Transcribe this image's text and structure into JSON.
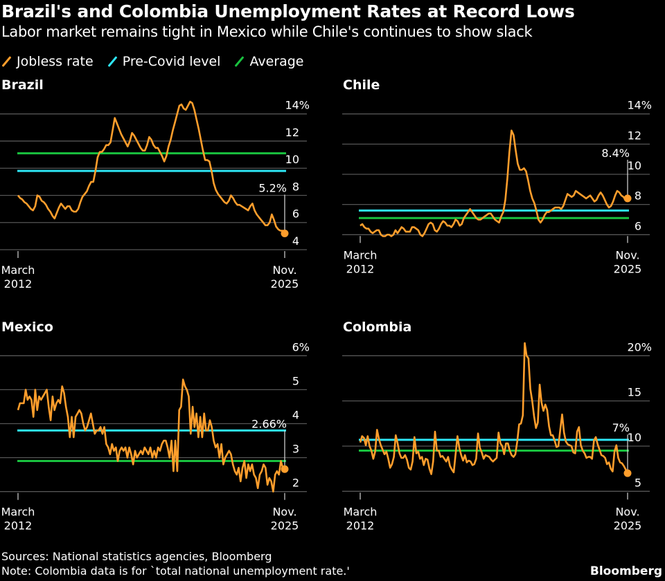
{
  "title": "Brazil's and Colombia Unemployment Rates at Record Lows",
  "subtitle": "Labor market remains tight in Mexico while Chile's continues to show slack",
  "legend": [
    {
      "label": "Jobless rate",
      "color": "#ff9e2c"
    },
    {
      "label": "Pre-Covid level",
      "color": "#2ee6f5"
    },
    {
      "label": "Average",
      "color": "#19c23f"
    }
  ],
  "footer": {
    "sources": "Sources: National statistics agencies, Bloomberg",
    "note": "Note: Colombia data is for `total national unemployment rate.'",
    "brand": "Bloomberg"
  },
  "chart_data": [
    {
      "type": "line",
      "title": "Brazil",
      "x_start": "March 2012",
      "x_end": "Nov. 2025",
      "x_tick_labels": [
        [
          "March",
          "2012"
        ],
        [
          "Nov.",
          "2025"
        ]
      ],
      "y_ticks": [
        4,
        6,
        8,
        10,
        12,
        14
      ],
      "y_tick_labels": [
        "4",
        "6",
        "8",
        "10",
        "12",
        "14%"
      ],
      "ylim": [
        4,
        14
      ],
      "grid": true,
      "pre_covid_level": 9.8,
      "average": 11.1,
      "last_value_label": "5.2%",
      "last_value": 5.2,
      "series": [
        {
          "name": "Jobless rate",
          "values": [
            8.0,
            7.8,
            7.7,
            7.5,
            7.4,
            7.2,
            7.0,
            6.9,
            7.2,
            8.0,
            7.9,
            7.6,
            7.5,
            7.3,
            7.0,
            6.8,
            6.5,
            6.3,
            6.7,
            7.1,
            7.4,
            7.2,
            7.0,
            7.2,
            7.2,
            6.9,
            6.8,
            6.8,
            7.0,
            7.5,
            7.9,
            8.1,
            8.3,
            8.7,
            9.0,
            9.0,
            9.8,
            10.8,
            11.2,
            11.2,
            11.4,
            11.7,
            11.7,
            11.9,
            12.8,
            13.7,
            13.3,
            12.9,
            12.5,
            12.2,
            11.9,
            11.6,
            12.0,
            12.6,
            12.4,
            12.1,
            11.8,
            11.5,
            11.3,
            11.3,
            11.7,
            12.3,
            12.1,
            11.7,
            11.5,
            11.5,
            11.2,
            10.9,
            10.5,
            10.9,
            11.6,
            12.1,
            12.8,
            13.4,
            14.0,
            14.6,
            14.7,
            14.4,
            14.3,
            14.6,
            14.9,
            14.8,
            14.3,
            13.6,
            12.9,
            12.1,
            11.3,
            10.6,
            10.6,
            10.5,
            9.8,
            8.9,
            8.4,
            8.1,
            7.9,
            7.7,
            7.5,
            7.4,
            7.6,
            8.0,
            7.8,
            7.5,
            7.3,
            7.3,
            7.2,
            7.1,
            7.0,
            6.9,
            7.2,
            7.4,
            6.9,
            6.6,
            6.4,
            6.2,
            6.0,
            5.8,
            5.8,
            6.0,
            6.6,
            6.2,
            5.7,
            5.5,
            5.4,
            5.4,
            5.2
          ]
        }
      ]
    },
    {
      "type": "line",
      "title": "Chile",
      "x_start": "March 2012",
      "x_end": "Nov. 2025",
      "x_tick_labels": [
        [
          "March",
          "2012"
        ],
        [
          "Nov.",
          "2025"
        ]
      ],
      "y_ticks": [
        6,
        8,
        10,
        12,
        14
      ],
      "y_tick_labels": [
        "6",
        "8",
        "10",
        "12",
        "14%"
      ],
      "ylim": [
        5.5,
        14
      ],
      "grid": true,
      "pre_covid_level": 7.6,
      "average": 7.1,
      "last_value_label": "8.4%",
      "last_value": 8.4,
      "series": [
        {
          "name": "Jobless rate",
          "values": [
            6.6,
            6.7,
            6.5,
            6.4,
            6.4,
            6.2,
            6.1,
            6.2,
            6.3,
            6.3,
            6.0,
            5.9,
            5.9,
            6.0,
            6.0,
            5.9,
            6.0,
            6.3,
            6.1,
            6.3,
            6.5,
            6.4,
            6.2,
            6.2,
            6.2,
            6.5,
            6.5,
            6.4,
            6.3,
            6.0,
            5.9,
            6.1,
            6.4,
            6.7,
            6.8,
            6.7,
            6.3,
            6.2,
            6.4,
            6.7,
            6.9,
            6.8,
            6.6,
            6.6,
            6.5,
            6.7,
            7.0,
            6.9,
            6.6,
            6.7,
            7.1,
            7.3,
            7.5,
            7.7,
            7.5,
            7.3,
            7.1,
            7.0,
            7.0,
            7.1,
            7.2,
            7.3,
            7.4,
            7.4,
            7.2,
            7.0,
            6.9,
            6.8,
            7.2,
            7.5,
            8.3,
            9.7,
            11.5,
            12.9,
            12.6,
            11.6,
            10.7,
            10.3,
            10.3,
            10.4,
            10.2,
            9.6,
            8.9,
            8.4,
            8.1,
            7.6,
            7.0,
            6.8,
            7.0,
            7.3,
            7.5,
            7.5,
            7.6,
            7.7,
            7.8,
            7.8,
            7.8,
            7.7,
            7.9,
            8.3,
            8.7,
            8.6,
            8.5,
            8.6,
            8.9,
            8.8,
            8.7,
            8.6,
            8.5,
            8.4,
            8.5,
            8.6,
            8.4,
            8.2,
            8.3,
            8.6,
            8.8,
            8.6,
            8.3,
            8.0,
            7.8,
            7.9,
            8.2,
            8.6,
            8.9,
            8.8,
            8.6,
            8.5,
            8.3,
            8.4
          ]
        }
      ]
    },
    {
      "type": "line",
      "title": "Mexico",
      "x_start": "March 2012",
      "x_end": "Nov. 2025",
      "x_tick_labels": [
        [
          "March",
          "2012"
        ],
        [
          "Nov.",
          "2025"
        ]
      ],
      "y_ticks": [
        2,
        3,
        4,
        5,
        6
      ],
      "y_tick_labels": [
        "2",
        "3",
        "4",
        "5",
        "6%"
      ],
      "ylim": [
        1.7,
        6
      ],
      "grid": true,
      "pre_covid_level": 3.8,
      "average": 2.9,
      "last_value_label": "2.66%",
      "last_value": 2.66,
      "series": [
        {
          "name": "Jobless rate",
          "values": [
            4.4,
            4.6,
            4.6,
            4.6,
            5.0,
            4.7,
            4.8,
            4.7,
            4.2,
            5.0,
            4.4,
            4.8,
            4.7,
            4.8,
            4.9,
            5.0,
            4.5,
            4.1,
            4.8,
            4.4,
            4.6,
            4.7,
            4.6,
            5.1,
            4.9,
            4.5,
            4.2,
            3.6,
            4.2,
            3.6,
            4.2,
            4.3,
            4.4,
            4.3,
            4.0,
            3.8,
            3.9,
            4.1,
            4.3,
            4.0,
            3.7,
            3.8,
            3.8,
            3.9,
            3.7,
            3.9,
            3.4,
            3.3,
            3.1,
            3.4,
            3.2,
            3.3,
            2.9,
            3.2,
            3.3,
            3.2,
            3.3,
            3.0,
            3.3,
            3.1,
            2.8,
            3.2,
            3.0,
            3.1,
            3.2,
            3.1,
            3.3,
            3.2,
            3.1,
            3.3,
            3.0,
            3.2,
            3.0,
            3.3,
            3.2,
            3.4,
            3.5,
            3.5,
            3.3,
            3.0,
            3.5,
            2.6,
            3.5,
            2.6,
            4.4,
            4.5,
            5.3,
            5.1,
            5.0,
            4.8,
            3.7,
            4.5,
            3.9,
            4.3,
            3.6,
            4.2,
            3.6,
            4.3,
            3.8,
            3.8,
            4.1,
            3.9,
            3.5,
            3.3,
            3.4,
            3.0,
            3.4,
            2.8,
            3.0,
            3.1,
            3.2,
            3.1,
            2.8,
            2.6,
            2.5,
            2.7,
            2.3,
            2.7,
            2.9,
            2.4,
            2.8,
            2.6,
            2.8,
            2.5,
            2.4,
            2.1,
            2.5,
            2.6,
            2.8,
            2.7,
            2.2,
            2.4,
            2.3,
            2.0,
            2.5,
            2.6,
            2.5,
            2.9,
            2.7,
            2.66
          ]
        }
      ]
    },
    {
      "type": "line",
      "title": "Colombia",
      "x_start": "March 2012",
      "x_end": "Nov. 2025",
      "x_tick_labels": [
        [
          "March",
          "2012"
        ],
        [
          "Nov.",
          "2025"
        ]
      ],
      "y_ticks": [
        5,
        10,
        15,
        20
      ],
      "y_tick_labels": [
        "5",
        "10",
        "15",
        "20%"
      ],
      "ylim": [
        5,
        22
      ],
      "grid": true,
      "pre_covid_level": 10.7,
      "average": 9.5,
      "last_value_label": "7%",
      "last_value": 7.0,
      "series": [
        {
          "name": "Jobless rate",
          "values": [
            10.4,
            11.1,
            10.9,
            10.1,
            11.1,
            10.0,
            9.5,
            8.6,
            9.4,
            11.8,
            10.8,
            10.1,
            9.6,
            9.1,
            9.4,
            8.6,
            7.6,
            8.0,
            8.8,
            11.2,
            10.3,
            9.2,
            8.7,
            8.7,
            9.0,
            8.5,
            7.6,
            7.4,
            8.3,
            11.0,
            9.2,
            9.4,
            8.6,
            8.8,
            7.9,
            8.6,
            8.5,
            7.5,
            6.9,
            8.3,
            11.6,
            9.5,
            9.5,
            8.8,
            8.9,
            8.6,
            8.3,
            8.8,
            7.8,
            7.4,
            7.1,
            9.1,
            11.1,
            9.8,
            9.0,
            8.4,
            9.0,
            8.2,
            8.4,
            8.3,
            7.9,
            8.0,
            8.6,
            11.4,
            9.8,
            9.3,
            8.6,
            9.0,
            8.9,
            8.8,
            8.5,
            8.3,
            8.5,
            8.7,
            11.5,
            10.3,
            10.0,
            9.1,
            10.3,
            10.3,
            9.5,
            9.0,
            8.8,
            9.1,
            10.5,
            12.4,
            12.5,
            13.4,
            21.4,
            20.0,
            19.7,
            16.3,
            15.0,
            13.3,
            12.0,
            12.6,
            16.8,
            14.8,
            13.9,
            14.6,
            14.0,
            12.2,
            11.2,
            11.2,
            10.6,
            9.9,
            10.0,
            11.8,
            13.5,
            11.5,
            10.5,
            10.2,
            10.1,
            10.0,
            9.3,
            9.2,
            11.6,
            12.1,
            10.1,
            9.5,
            9.2,
            8.7,
            8.8,
            8.8,
            8.6,
            10.6,
            11.0,
            10.2,
            9.6,
            9.0,
            8.9,
            8.7,
            8.0,
            8.2,
            7.5,
            7.2,
            9.4,
            10.1,
            8.7,
            8.2,
            8.1,
            7.8,
            7.4,
            7.2
          ]
        }
      ]
    }
  ]
}
